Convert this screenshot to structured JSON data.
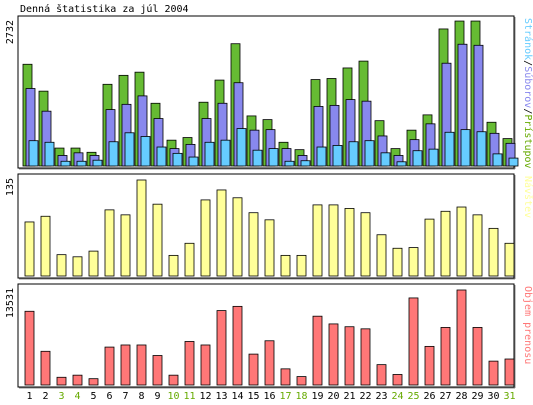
{
  "title": "Denná štatistika za júl 2004",
  "colors": {
    "hits": "#66bb33",
    "files": "#8888ee",
    "pages": "#66ccff",
    "visits": "#ffff99",
    "kbytes": "#ff7777",
    "weekend": "#66aa00",
    "axis": "#000000"
  },
  "chart_data": [
    {
      "type": "bar",
      "name": "top",
      "max_label": "2732",
      "side_label_parts": [
        {
          "text": "Stránok",
          "color": "#66ccff"
        },
        {
          "text": "/",
          "color": "#000000"
        },
        {
          "text": "Súborov",
          "color": "#8888ee"
        },
        {
          "text": "/",
          "color": "#000000"
        },
        {
          "text": "Prístupov",
          "color": "#66aa00"
        }
      ],
      "categories": [
        "1",
        "2",
        "3",
        "4",
        "5",
        "6",
        "7",
        "8",
        "9",
        "10",
        "11",
        "12",
        "13",
        "14",
        "15",
        "16",
        "17",
        "18",
        "19",
        "20",
        "21",
        "22",
        "23",
        "24",
        "25",
        "26",
        "27",
        "28",
        "29",
        "30",
        "31"
      ],
      "weekend_days": [
        "3",
        "4",
        "10",
        "11",
        "17",
        "18",
        "24",
        "25",
        "31"
      ],
      "ylim": [
        0,
        2732
      ],
      "series": [
        {
          "name": "Prístupov",
          "values": [
            1930,
            1420,
            340,
            340,
            260,
            1550,
            1720,
            1780,
            1190,
            490,
            540,
            1210,
            1630,
            2320,
            950,
            880,
            450,
            310,
            1640,
            1660,
            1860,
            1990,
            860,
            330,
            680,
            970,
            2600,
            2750,
            2750,
            830,
            520
          ]
        },
        {
          "name": "Súborov",
          "values": [
            1470,
            1040,
            200,
            250,
            200,
            1070,
            1170,
            1330,
            900,
            330,
            410,
            900,
            1190,
            1580,
            680,
            690,
            330,
            200,
            1130,
            1150,
            1260,
            1230,
            570,
            200,
            500,
            800,
            1950,
            2310,
            2290,
            620,
            430
          ]
        },
        {
          "name": "Stránok",
          "values": [
            480,
            450,
            90,
            90,
            110,
            460,
            630,
            560,
            360,
            240,
            170,
            450,
            490,
            710,
            300,
            330,
            90,
            100,
            360,
            390,
            460,
            480,
            250,
            80,
            290,
            320,
            640,
            690,
            650,
            230,
            150
          ]
        }
      ]
    },
    {
      "type": "bar",
      "name": "middle",
      "max_label": "135",
      "side_label_parts": [
        {
          "text": "Návštev",
          "color": "#ffff99"
        }
      ],
      "categories": [
        "1",
        "2",
        "3",
        "4",
        "5",
        "6",
        "7",
        "8",
        "9",
        "10",
        "11",
        "12",
        "13",
        "14",
        "15",
        "16",
        "17",
        "18",
        "19",
        "20",
        "21",
        "22",
        "23",
        "24",
        "25",
        "26",
        "27",
        "28",
        "29",
        "30",
        "31"
      ],
      "ylim": [
        0,
        135
      ],
      "series": [
        {
          "name": "Návštev",
          "values": [
            76,
            84,
            30,
            27,
            35,
            93,
            86,
            135,
            101,
            29,
            46,
            107,
            121,
            110,
            89,
            79,
            29,
            29,
            100,
            100,
            95,
            89,
            58,
            39,
            40,
            80,
            91,
            97,
            86,
            67,
            46
          ]
        }
      ]
    },
    {
      "type": "bar",
      "name": "bottom",
      "max_label": "13531",
      "side_label_parts": [
        {
          "text": "Objem prenosu",
          "color": "#ff7777"
        }
      ],
      "categories": [
        "1",
        "2",
        "3",
        "4",
        "5",
        "6",
        "7",
        "8",
        "9",
        "10",
        "11",
        "12",
        "13",
        "14",
        "15",
        "16",
        "17",
        "18",
        "19",
        "20",
        "21",
        "22",
        "23",
        "24",
        "25",
        "26",
        "27",
        "28",
        "29",
        "30",
        "31"
      ],
      "ylim": [
        0,
        13531
      ],
      "series": [
        {
          "name": "Objem prenosu",
          "values": [
            10500,
            4800,
            1100,
            1400,
            900,
            5400,
            5700,
            5700,
            4200,
            1400,
            6200,
            5700,
            10600,
            11200,
            4400,
            6300,
            2300,
            1200,
            9800,
            8700,
            8300,
            8000,
            2900,
            1500,
            12400,
            5500,
            8200,
            13531,
            8200,
            3400,
            3700
          ]
        }
      ]
    }
  ]
}
